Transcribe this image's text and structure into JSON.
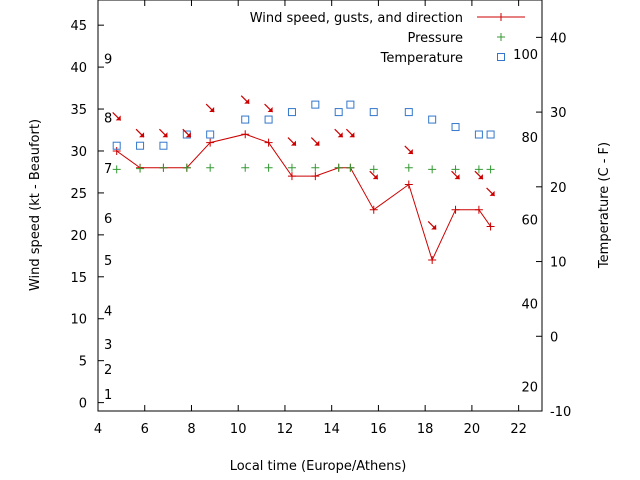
{
  "chart_data": {
    "type": "line",
    "xlabel": "Local time (Europe/Athens)",
    "ylabel_left": "Wind speed (kt - Beaufort)",
    "ylabel_right": "Temperature (C - F)",
    "xlim": [
      4,
      23
    ],
    "ylim_left": [
      -1,
      48
    ],
    "ylim_right": [
      -10,
      45
    ],
    "x_ticks": [
      4,
      6,
      8,
      10,
      12,
      14,
      16,
      18,
      20,
      22
    ],
    "y_ticks_left": [
      0,
      5,
      10,
      15,
      20,
      25,
      30,
      35,
      40,
      45
    ],
    "y_ticks_right": [
      -10,
      0,
      10,
      20,
      30,
      40
    ],
    "beaufort_labels": [
      {
        "label": "1",
        "kt": 1
      },
      {
        "label": "2",
        "kt": 4
      },
      {
        "label": "3",
        "kt": 7
      },
      {
        "label": "4",
        "kt": 11
      },
      {
        "label": "5",
        "kt": 17
      },
      {
        "label": "6",
        "kt": 22
      },
      {
        "label": "7",
        "kt": 28
      },
      {
        "label": "8",
        "kt": 34
      },
      {
        "label": "9",
        "kt": 41
      }
    ],
    "fahrenheit_labels": [
      {
        "label": "20",
        "c": -6.7
      },
      {
        "label": "40",
        "c": 4.4
      },
      {
        "label": "60",
        "c": 15.6
      },
      {
        "label": "80",
        "c": 26.7
      },
      {
        "label": "100",
        "c": 37.8
      }
    ],
    "legend": [
      {
        "label": "Wind speed, gusts, and direction",
        "marker": "line-plus",
        "color": "#cc0000"
      },
      {
        "label": "Pressure",
        "marker": "plus",
        "color": "#339933"
      },
      {
        "label": "Temperature",
        "marker": "square",
        "color": "#3377cc"
      }
    ],
    "legend_position": "top-right",
    "grid": false,
    "series": [
      {
        "name": "Wind speed, gusts, and direction",
        "axis": "left",
        "color": "#cc0000",
        "x": [
          4.8,
          5.8,
          6.8,
          7.8,
          8.8,
          10.3,
          11.3,
          12.3,
          13.3,
          14.3,
          14.8,
          15.8,
          17.3,
          18.3,
          19.3,
          20.3,
          20.8
        ],
        "y": [
          30,
          28,
          28,
          28,
          31,
          32,
          31,
          27,
          27,
          28,
          28,
          23,
          26,
          17,
          23,
          23,
          21
        ]
      },
      {
        "name": "Pressure",
        "axis": "left",
        "color": "#339933",
        "x": [
          4.8,
          5.8,
          6.8,
          7.8,
          8.8,
          10.3,
          11.3,
          12.3,
          13.3,
          14.3,
          14.8,
          15.8,
          17.3,
          18.3,
          19.3,
          20.3,
          20.8
        ],
        "y": [
          27.8,
          27.9,
          28,
          28,
          28,
          28,
          28,
          28,
          28,
          28,
          28,
          27.8,
          28,
          27.8,
          27.8,
          27.8,
          27.8
        ]
      },
      {
        "name": "Temperature",
        "axis": "right",
        "color": "#3377cc",
        "x": [
          4.8,
          5.8,
          6.8,
          7.8,
          8.8,
          10.3,
          11.3,
          12.3,
          13.3,
          14.3,
          14.8,
          15.8,
          17.3,
          18.3,
          19.3,
          20.3,
          20.8
        ],
        "y": [
          25.5,
          25.5,
          25.5,
          27,
          27,
          29,
          29,
          30,
          31,
          30,
          31,
          30,
          30,
          29,
          28,
          27,
          27
        ]
      }
    ],
    "wind_arrows": [
      {
        "x": 4.8,
        "kt": 34
      },
      {
        "x": 5.8,
        "kt": 32
      },
      {
        "x": 6.8,
        "kt": 32
      },
      {
        "x": 7.8,
        "kt": 32
      },
      {
        "x": 8.8,
        "kt": 35
      },
      {
        "x": 10.3,
        "kt": 36
      },
      {
        "x": 11.3,
        "kt": 35
      },
      {
        "x": 12.3,
        "kt": 31
      },
      {
        "x": 13.3,
        "kt": 31
      },
      {
        "x": 14.3,
        "kt": 32
      },
      {
        "x": 14.8,
        "kt": 32
      },
      {
        "x": 15.8,
        "kt": 27
      },
      {
        "x": 17.3,
        "kt": 30
      },
      {
        "x": 18.3,
        "kt": 21
      },
      {
        "x": 19.3,
        "kt": 27
      },
      {
        "x": 20.3,
        "kt": 27
      },
      {
        "x": 20.8,
        "kt": 25
      }
    ]
  }
}
